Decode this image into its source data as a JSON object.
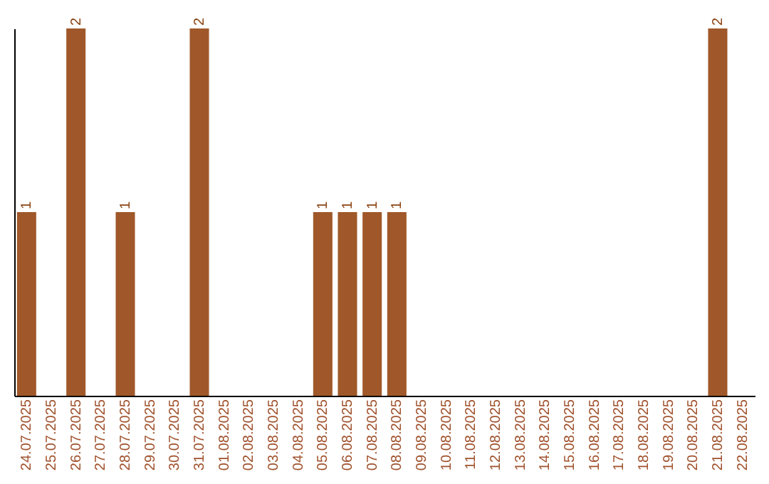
{
  "chart_data": {
    "type": "bar",
    "categories": [
      "24.07.2025",
      "25.07.2025",
      "26.07.2025",
      "27.07.2025",
      "28.07.2025",
      "29.07.2025",
      "30.07.2025",
      "31.07.2025",
      "01.08.2025",
      "02.08.2025",
      "03.08.2025",
      "04.08.2025",
      "05.08.2025",
      "06.08.2025",
      "07.08.2025",
      "08.08.2025",
      "09.08.2025",
      "10.08.2025",
      "11.08.2025",
      "12.08.2025",
      "13.08.2025",
      "14.08.2025",
      "15.08.2025",
      "16.08.2025",
      "17.08.2025",
      "18.08.2025",
      "19.08.2025",
      "20.08.2025",
      "21.08.2025",
      "22.08.2025"
    ],
    "values": [
      1,
      0,
      2,
      0,
      1,
      0,
      0,
      2,
      0,
      0,
      0,
      0,
      1,
      1,
      1,
      1,
      0,
      0,
      0,
      0,
      0,
      0,
      0,
      0,
      0,
      0,
      0,
      0,
      2,
      0
    ],
    "value_labels": [
      "1",
      null,
      "2",
      null,
      "1",
      null,
      null,
      "2",
      null,
      null,
      null,
      null,
      "1",
      "1",
      "1",
      "1",
      null,
      null,
      null,
      null,
      null,
      null,
      null,
      null,
      null,
      null,
      null,
      null,
      "2",
      null
    ],
    "color": "#a0582a",
    "ylim": [
      0,
      2
    ],
    "tick_labels": "x",
    "grid": false
  }
}
